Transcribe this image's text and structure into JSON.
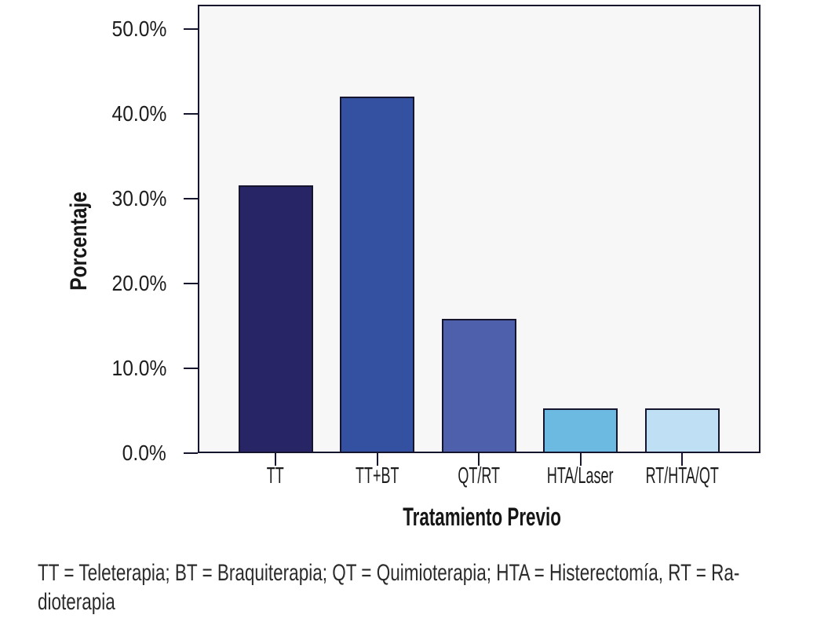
{
  "figure": {
    "background": "#ffffff",
    "caption": {
      "line1": "TT = Teleterapia; BT = Braquiterapia; QT = Quimioterapia; HTA = Histerectomía, RT = Ra-",
      "line2": "dioterapia"
    }
  },
  "chart_data": {
    "type": "bar",
    "title": "",
    "xlabel": "Tratamiento Previo",
    "ylabel": "Porcentaje",
    "categories": [
      "TT",
      "TT+BT",
      "QT/RT",
      "HTA/Laser",
      "RT/HTA/QT"
    ],
    "values": [
      31.6,
      42.1,
      15.8,
      5.3,
      5.3
    ],
    "value_unit": "%",
    "ylim": [
      0,
      52.9
    ],
    "yticks": [
      0,
      10,
      20,
      30,
      40,
      50
    ],
    "ytick_labels": [
      "0.0%",
      "10.0%",
      "20.0%",
      "30.0%",
      "40.0%",
      "50.0%"
    ],
    "bar_colors": [
      "#272566",
      "#3451a1",
      "#4e5fac",
      "#6cb9e2",
      "#bfdff4"
    ],
    "bar_border_color": "#15152e",
    "plot_background": "#f7f7f7",
    "frame_color": "#15152e",
    "grid": false,
    "legend": null
  }
}
